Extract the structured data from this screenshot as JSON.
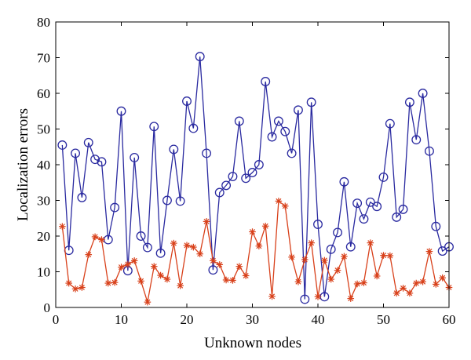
{
  "chart_data": {
    "type": "line",
    "title": "",
    "xlabel": "Unknown nodes",
    "ylabel": "Localization errors",
    "xlim": [
      0,
      60
    ],
    "ylim": [
      0,
      80
    ],
    "xticks": [
      0,
      10,
      20,
      30,
      40,
      50,
      60
    ],
    "yticks": [
      0,
      10,
      20,
      30,
      40,
      50,
      60,
      70,
      80
    ],
    "grid": false,
    "x": [
      1,
      2,
      3,
      4,
      5,
      6,
      7,
      8,
      9,
      10,
      11,
      12,
      13,
      14,
      15,
      16,
      17,
      18,
      19,
      20,
      21,
      22,
      23,
      24,
      25,
      26,
      27,
      28,
      29,
      30,
      31,
      32,
      33,
      34,
      35,
      36,
      37,
      38,
      39,
      40,
      41,
      42,
      43,
      44,
      45,
      46,
      47,
      48,
      49,
      50,
      51,
      52,
      53,
      54,
      55,
      56,
      57,
      58,
      59,
      60
    ],
    "series": [
      {
        "color": "#2a2aa0",
        "marker": "circle",
        "values": [
          45.5,
          16,
          43.2,
          30.8,
          46.2,
          41.5,
          40.8,
          19,
          28,
          55,
          10.3,
          42,
          20,
          16.8,
          50.7,
          15.2,
          30,
          44.3,
          29.8,
          57.8,
          50.2,
          70.3,
          43.2,
          10.5,
          32.2,
          34.2,
          36.7,
          52.2,
          36.2,
          37.8,
          40,
          63.3,
          47.8,
          52.2,
          49.3,
          43.2,
          55.3,
          2.3,
          57.5,
          23.3,
          3,
          16.3,
          21,
          35.2,
          17,
          29.2,
          24.8,
          29.5,
          28.3,
          36.5,
          51.5,
          25.3,
          27.5,
          57.5,
          47,
          60,
          43.8,
          22.7,
          15.8,
          17
        ]
      },
      {
        "color": "#d8401a",
        "marker": "asterisk",
        "values": [
          22.7,
          6.8,
          5.2,
          5.6,
          14.8,
          19.8,
          19,
          6.8,
          7,
          11.3,
          12.1,
          13.1,
          7.4,
          1.5,
          11.5,
          9,
          7.9,
          18,
          6.1,
          17.4,
          16.9,
          15,
          24.1,
          13.1,
          12,
          7.7,
          7.6,
          11.5,
          8.9,
          21.2,
          17.2,
          22.8,
          3.1,
          29.8,
          28.4,
          14.1,
          7.2,
          13.4,
          18.1,
          3,
          13.2,
          7.9,
          10.4,
          14.3,
          2.5,
          6.6,
          6.9,
          18.1,
          8.8,
          14.6,
          14.5,
          4,
          5.4,
          4,
          6.8,
          7.2,
          15.7,
          6.5,
          8.3,
          5.6
        ]
      }
    ]
  }
}
